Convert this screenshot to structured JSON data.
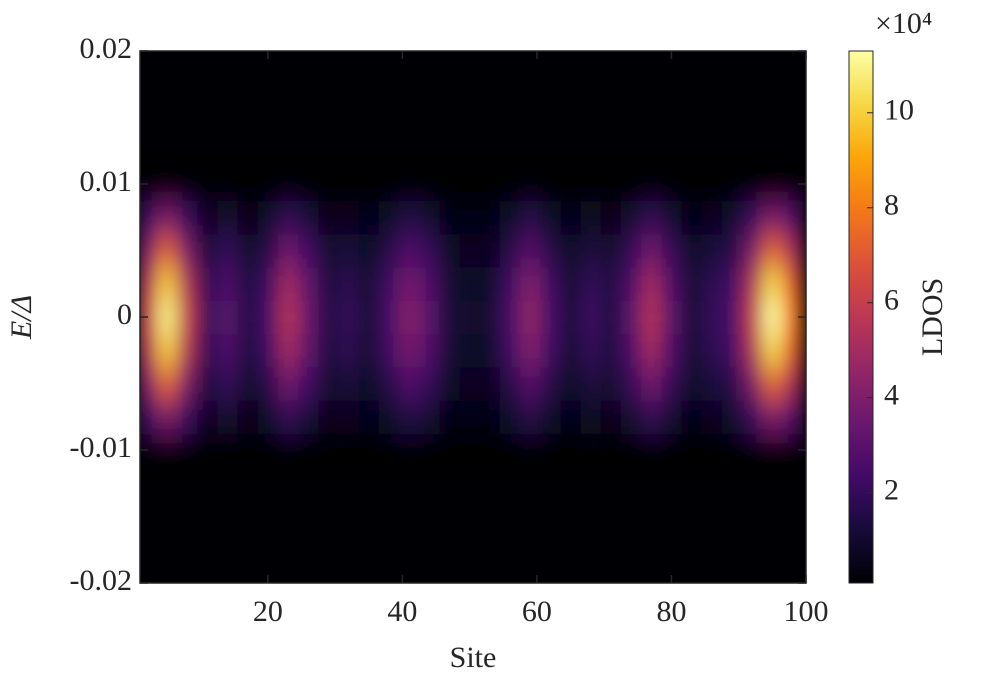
{
  "chart_data": {
    "type": "heatmap",
    "xlabel": "Site",
    "ylabel": "E/Δ",
    "colorbar_label": "LDOS",
    "colorbar_multiplier": "×10⁴",
    "xlim": [
      1,
      100
    ],
    "xticks": [
      20,
      40,
      60,
      80,
      100
    ],
    "ylim": [
      -0.02,
      0.02
    ],
    "yticks": [
      -0.02,
      -0.01,
      0,
      0.01,
      0.02
    ],
    "clim": [
      0.1,
      11.3
    ],
    "cticks": [
      2,
      4,
      6,
      8,
      10
    ],
    "colormap": "inferno",
    "x": [
      2,
      5,
      8,
      11,
      14,
      17,
      20,
      23,
      26,
      29,
      32,
      35,
      38,
      41,
      44,
      47,
      50,
      53,
      56,
      59,
      62,
      65,
      68,
      71,
      74,
      77,
      80,
      83,
      86,
      89,
      92,
      95,
      98
    ],
    "y": [
      -0.01,
      -0.0075,
      -0.005,
      -0.0025,
      0,
      0.0025,
      0.005,
      0.0075,
      0.01
    ],
    "z": [
      [
        0.1,
        0.1,
        0.1,
        0.1,
        0.1,
        0.1,
        0.1,
        0.1,
        0.1,
        0.1,
        0.1,
        0.1,
        0.1,
        0.1,
        0.1,
        0.1,
        0.1,
        0.1,
        0.1,
        0.1,
        0.1,
        0.1,
        0.1,
        0.1,
        0.1,
        0.1,
        0.1,
        0.1,
        0.1,
        0.1,
        0.1,
        0.1,
        0.1
      ],
      [
        2.1,
        3.9,
        2.1,
        0.7,
        1.1,
        0.5,
        0.9,
        1.9,
        1.2,
        0.5,
        0.7,
        0.4,
        0.9,
        1.5,
        1.1,
        0.4,
        0.4,
        0.4,
        0.9,
        1.6,
        0.9,
        0.4,
        0.8,
        0.5,
        1.1,
        1.9,
        1.1,
        0.4,
        0.7,
        0.9,
        2.1,
        4.0,
        2.8
      ],
      [
        3.9,
        7.2,
        3.9,
        1.3,
        2.0,
        1.0,
        1.6,
        3.6,
        2.3,
        1.0,
        1.3,
        0.8,
        1.6,
        2.7,
        2.0,
        0.8,
        0.7,
        0.7,
        1.6,
        2.9,
        1.6,
        0.8,
        1.4,
        1.0,
        2.0,
        3.6,
        2.0,
        0.8,
        1.3,
        1.6,
        3.9,
        7.3,
        5.2
      ],
      [
        5.4,
        9.9,
        5.4,
        1.8,
        2.7,
        1.4,
        2.3,
        5.0,
        3.2,
        1.4,
        1.8,
        1.1,
        2.3,
        3.8,
        2.7,
        1.1,
        0.9,
        0.9,
        2.3,
        4.1,
        2.3,
        1.1,
        2.0,
        1.4,
        2.7,
        5.0,
        2.7,
        1.1,
        1.8,
        2.3,
        5.4,
        10.2,
        7.2
      ],
      [
        6.0,
        11.0,
        6.0,
        2.0,
        3.0,
        1.5,
        2.5,
        5.5,
        3.5,
        1.5,
        2.0,
        1.2,
        2.5,
        4.2,
        3.0,
        1.2,
        1.0,
        1.0,
        2.5,
        4.5,
        2.5,
        1.2,
        2.2,
        1.5,
        3.0,
        5.5,
        3.0,
        1.2,
        2.0,
        2.5,
        6.0,
        11.3,
        8.0
      ],
      [
        5.4,
        9.9,
        5.4,
        1.8,
        2.7,
        1.4,
        2.3,
        5.0,
        3.2,
        1.4,
        1.8,
        1.1,
        2.3,
        3.8,
        2.7,
        1.1,
        0.9,
        0.9,
        2.3,
        4.1,
        2.3,
        1.1,
        2.0,
        1.4,
        2.7,
        5.0,
        2.7,
        1.1,
        1.8,
        2.3,
        5.4,
        10.2,
        7.2
      ],
      [
        3.9,
        7.2,
        3.9,
        1.3,
        2.0,
        1.0,
        1.6,
        3.6,
        2.3,
        1.0,
        1.3,
        0.8,
        1.6,
        2.7,
        2.0,
        0.8,
        0.7,
        0.7,
        1.6,
        2.9,
        1.6,
        0.8,
        1.4,
        1.0,
        2.0,
        3.6,
        2.0,
        0.8,
        1.3,
        1.6,
        3.9,
        7.3,
        5.2
      ],
      [
        2.1,
        3.9,
        2.1,
        0.7,
        1.1,
        0.5,
        0.9,
        1.9,
        1.2,
        0.5,
        0.7,
        0.4,
        0.9,
        1.5,
        1.1,
        0.4,
        0.4,
        0.4,
        0.9,
        1.6,
        0.9,
        0.4,
        0.8,
        0.5,
        1.1,
        1.9,
        1.1,
        0.4,
        0.7,
        0.9,
        2.1,
        4.0,
        2.8
      ],
      [
        0.1,
        0.1,
        0.1,
        0.1,
        0.1,
        0.1,
        0.1,
        0.1,
        0.1,
        0.1,
        0.1,
        0.1,
        0.1,
        0.1,
        0.1,
        0.1,
        0.1,
        0.1,
        0.1,
        0.1,
        0.1,
        0.1,
        0.1,
        0.1,
        0.1,
        0.1,
        0.1,
        0.1,
        0.1,
        0.1,
        0.1,
        0.1,
        0.1
      ]
    ]
  }
}
